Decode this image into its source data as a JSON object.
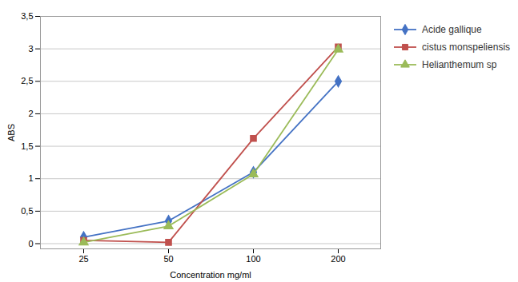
{
  "chart_data": {
    "type": "line",
    "categories": [
      "25",
      "50",
      "100",
      "200"
    ],
    "series": [
      {
        "name": "Acide gallique",
        "color": "#4472C4",
        "marker": "diamond",
        "values": [
          0.1,
          0.35,
          1.1,
          2.5
        ]
      },
      {
        "name": "cistus monspeliensis",
        "color": "#C0504D",
        "marker": "square",
        "values": [
          0.05,
          0.02,
          1.62,
          3.03
        ]
      },
      {
        "name": "Helianthemum sp",
        "color": "#9BBB59",
        "marker": "triangle",
        "values": [
          0.02,
          0.27,
          1.07,
          2.99
        ]
      }
    ],
    "xlabel": "Concentration mg/ml",
    "ylabel": "ABS",
    "ylim": [
      -0.08,
      3.5
    ],
    "yticks": [
      0,
      {
        "value": 0.5,
        "label": "0,5"
      },
      1,
      {
        "value": 1.5,
        "label": "1,5"
      },
      2,
      {
        "value": 2.5,
        "label": "2,5"
      },
      3,
      {
        "value": 3.5,
        "label": "3,5"
      }
    ],
    "grid": true,
    "legend": "right"
  }
}
